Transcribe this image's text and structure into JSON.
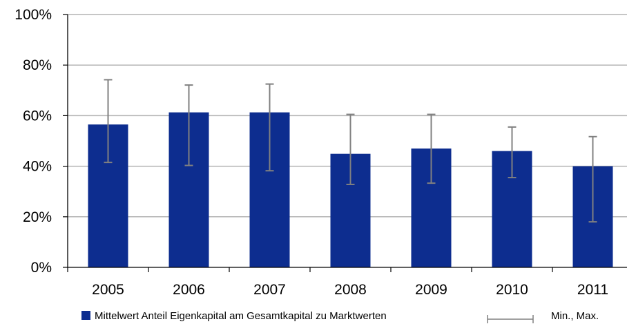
{
  "chart_data": {
    "type": "bar",
    "categories": [
      "2005",
      "2006",
      "2007",
      "2008",
      "2009",
      "2010",
      "2011"
    ],
    "series": [
      {
        "name": "Mittelwert Anteil Eigenkapital am Gesamtkapital zu Marktwerten",
        "values": [
          0.565,
          0.613,
          0.613,
          0.449,
          0.47,
          0.46,
          0.4
        ],
        "color": "#0d2d8f"
      }
    ],
    "error_bars": {
      "name": "Min., Max.",
      "min": [
        0.415,
        0.403,
        0.382,
        0.328,
        0.333,
        0.355,
        0.18
      ],
      "max": [
        0.742,
        0.721,
        0.725,
        0.605,
        0.605,
        0.555,
        0.517
      ],
      "color": "#808080"
    },
    "ylim": [
      0,
      1
    ],
    "yticks": [
      0,
      0.2,
      0.4,
      0.6,
      0.8,
      1.0
    ],
    "ytick_labels": [
      "0%",
      "20%",
      "40%",
      "60%",
      "80%",
      "100%"
    ],
    "grid": true,
    "legend_position": "bottom"
  }
}
